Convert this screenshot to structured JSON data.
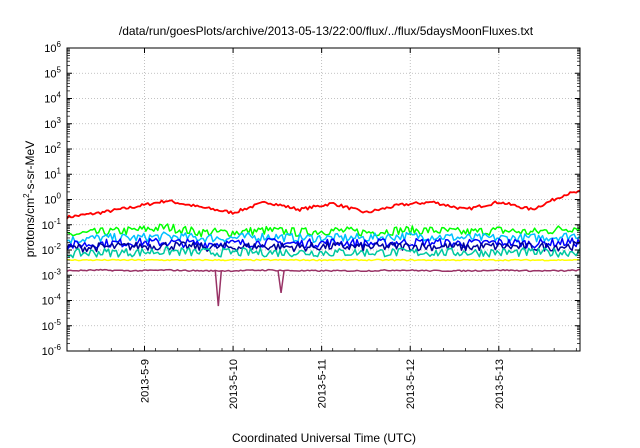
{
  "chart_data": {
    "type": "line",
    "title": "/data/run/goesPlots/archive/2013-05-13/22:00/flux/../flux/5daysMoonFluxes.txt",
    "xlabel": "Coordinated Universal Time (UTC)",
    "ylabel": "protons/cm2-s-sr-MeV",
    "yscale": "log",
    "ylim": [
      1e-06,
      1000000.0
    ],
    "xlim": [
      "2013-05-08 03:00",
      "2013-05-13 22:00"
    ],
    "x_tick_labels": [
      "2013-5-9",
      "2013-5-10",
      "2013-5-11",
      "2013-5-12",
      "2013-5-13"
    ],
    "y_tick_exponents": [
      -6,
      -5,
      -4,
      -3,
      -2,
      -1,
      0,
      1,
      2,
      3,
      4,
      5,
      6
    ],
    "grid": true,
    "x": [
      "2013-05-08 03:00",
      "2013-05-08 12:00",
      "2013-05-08 21:00",
      "2013-05-09 06:00",
      "2013-05-09 15:00",
      "2013-05-10 00:00",
      "2013-05-10 09:00",
      "2013-05-10 18:00",
      "2013-05-11 03:00",
      "2013-05-11 12:00",
      "2013-05-11 21:00",
      "2013-05-12 06:00",
      "2013-05-12 15:00",
      "2013-05-13 00:00",
      "2013-05-13 09:00",
      "2013-05-13 18:00",
      "2013-05-13 22:00"
    ],
    "series": [
      {
        "color": "#ff0000",
        "values": [
          0.2,
          0.3,
          0.5,
          0.9,
          0.5,
          0.3,
          0.8,
          0.4,
          0.7,
          0.3,
          0.6,
          0.8,
          0.4,
          0.8,
          0.4,
          1.6,
          2.0
        ]
      },
      {
        "color": "#00ff00",
        "values": [
          0.04,
          0.05,
          0.06,
          0.08,
          0.05,
          0.05,
          0.06,
          0.05,
          0.06,
          0.05,
          0.06,
          0.06,
          0.05,
          0.06,
          0.05,
          0.07,
          0.08
        ]
      },
      {
        "color": "#00bfff",
        "values": [
          0.025,
          0.03,
          0.03,
          0.035,
          0.03,
          0.03,
          0.035,
          0.03,
          0.03,
          0.03,
          0.035,
          0.035,
          0.03,
          0.03,
          0.03,
          0.035,
          0.04
        ]
      },
      {
        "color": "#0000ff",
        "values": [
          0.015,
          0.018,
          0.02,
          0.02,
          0.018,
          0.018,
          0.02,
          0.018,
          0.02,
          0.018,
          0.02,
          0.02,
          0.018,
          0.02,
          0.018,
          0.02,
          0.02
        ]
      },
      {
        "color": "#000099",
        "values": [
          0.012,
          0.013,
          0.014,
          0.015,
          0.013,
          0.013,
          0.014,
          0.013,
          0.014,
          0.013,
          0.014,
          0.014,
          0.013,
          0.014,
          0.013,
          0.014,
          0.015
        ]
      },
      {
        "color": "#00c8a0",
        "values": [
          0.007,
          0.008,
          0.008,
          0.009,
          0.008,
          0.008,
          0.008,
          0.008,
          0.008,
          0.008,
          0.008,
          0.008,
          0.008,
          0.008,
          0.008,
          0.008,
          0.009
        ]
      },
      {
        "color": "#ffff00",
        "values": [
          0.004,
          0.004,
          0.004,
          0.004,
          0.004,
          0.004,
          0.004,
          0.004,
          0.004,
          0.004,
          0.004,
          0.004,
          0.004,
          0.004,
          0.004,
          0.004,
          0.004
        ]
      },
      {
        "color": "#993366",
        "values": [
          0.0015,
          0.0016,
          0.0015,
          0.0016,
          0.0015,
          0.0015,
          0.0016,
          0.0015,
          0.0015,
          0.0015,
          0.0016,
          0.0015,
          0.0015,
          0.0016,
          0.0015,
          0.0015,
          0.0016
        ]
      }
    ],
    "dips": [
      {
        "x": "2013-05-09 20:00",
        "value": 6e-05
      },
      {
        "x": "2013-05-10 13:00",
        "value": 0.0002
      }
    ]
  }
}
